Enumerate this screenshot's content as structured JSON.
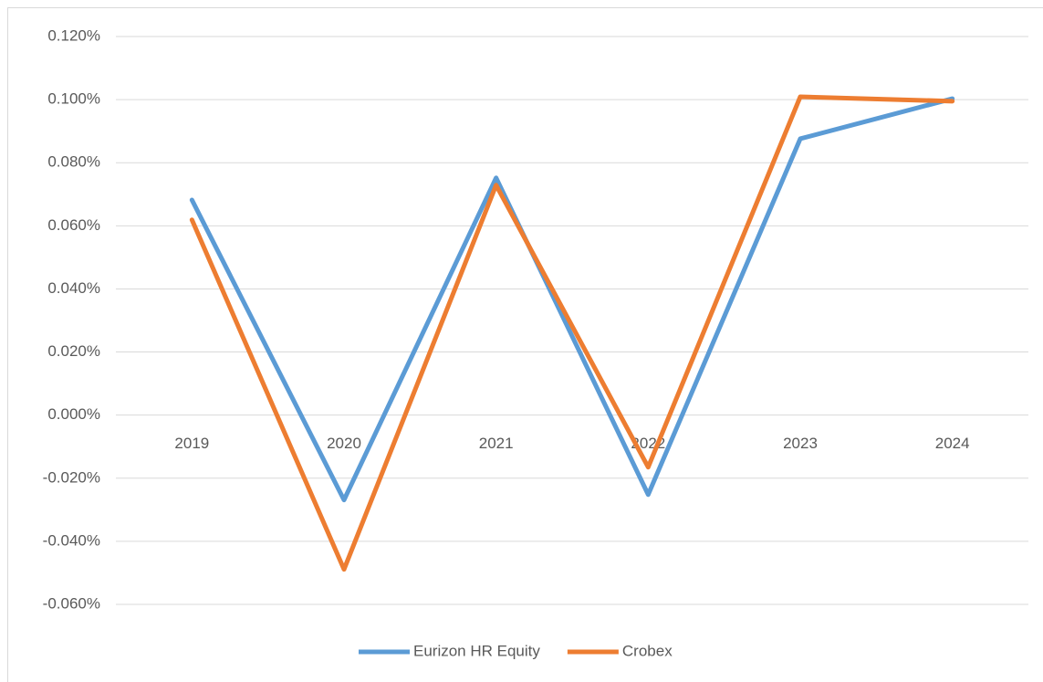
{
  "chart_data": {
    "type": "line",
    "categories": [
      "2019",
      "2020",
      "2021",
      "2022",
      "2023",
      "2024"
    ],
    "series": [
      {
        "name": "Eurizon HR Equity",
        "color": "#5b9bd5",
        "values": [
          0.0682,
          -0.0269,
          0.0752,
          -0.0252,
          0.0876,
          0.1003
        ]
      },
      {
        "name": "Crobex",
        "color": "#ed7d31",
        "values": [
          0.0619,
          -0.0489,
          0.0729,
          -0.0165,
          0.1009,
          0.0995
        ]
      }
    ],
    "ylim": [
      -0.06,
      0.12
    ],
    "yticks": [
      {
        "value": -0.06,
        "label": "-0.060%"
      },
      {
        "value": -0.04,
        "label": "-0.040%"
      },
      {
        "value": -0.02,
        "label": "-0.020%"
      },
      {
        "value": 0,
        "label": "0.000%"
      },
      {
        "value": 0.02,
        "label": "0.020%"
      },
      {
        "value": 0.04,
        "label": "0.040%"
      },
      {
        "value": 0.06,
        "label": "0.060%"
      },
      {
        "value": 0.08,
        "label": "0.080%"
      },
      {
        "value": 0.1,
        "label": "0.100%"
      },
      {
        "value": 0.12,
        "label": "0.120%"
      }
    ],
    "grid": true,
    "legend": "bottom"
  }
}
